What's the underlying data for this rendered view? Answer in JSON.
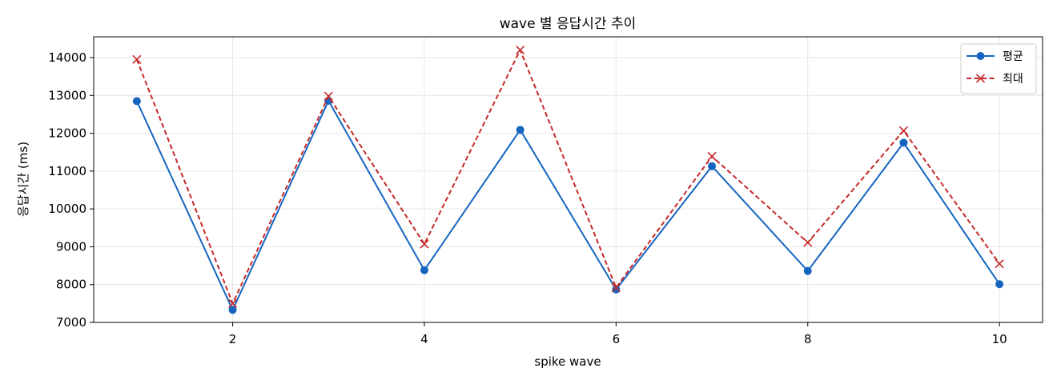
{
  "chart_data": {
    "type": "line",
    "title": "wave 별 응답시간 추이",
    "xlabel": "spike wave",
    "ylabel": "응답시간 (ms)",
    "x": [
      1,
      2,
      3,
      4,
      5,
      6,
      7,
      8,
      9,
      10
    ],
    "xlim": [
      0.55,
      10.45
    ],
    "ylim": [
      7000,
      14550
    ],
    "xticks": [
      2,
      4,
      6,
      8,
      10
    ],
    "yticks": [
      7000,
      8000,
      9000,
      10000,
      11000,
      12000,
      13000,
      14000
    ],
    "grid": true,
    "legend_position": "top-right",
    "series": [
      {
        "name": "평균",
        "color": "#1565c0",
        "style": "solid",
        "marker": "circle",
        "values": [
          12850,
          7330,
          12860,
          8380,
          12090,
          7870,
          11130,
          8360,
          11750,
          8010
        ]
      },
      {
        "name": "최대",
        "color": "#c62828",
        "style": "dashed",
        "marker": "x",
        "values": [
          13950,
          7500,
          12980,
          9070,
          14200,
          7920,
          11390,
          9110,
          12070,
          8550
        ]
      }
    ]
  }
}
